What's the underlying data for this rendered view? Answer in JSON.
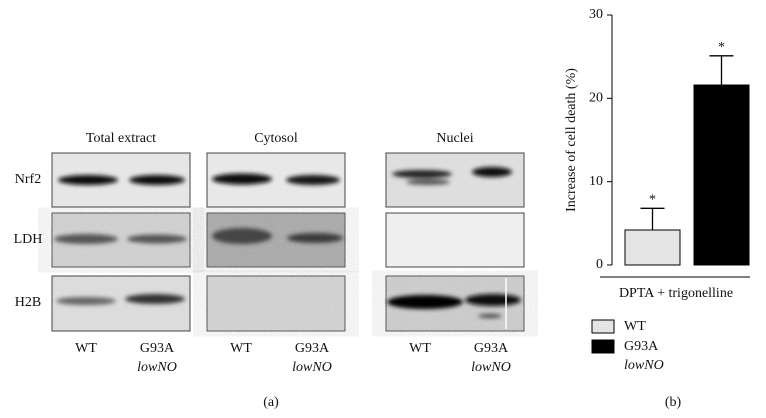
{
  "blots": {
    "rows": [
      "Nrf2",
      "LDH",
      "H2B"
    ],
    "panels": [
      {
        "title": "Total extract",
        "lanes": [
          {
            "label": "WT"
          },
          {
            "label": "G93A",
            "sublabel": "lowNO"
          }
        ]
      },
      {
        "title": "Cytosol",
        "lanes": [
          {
            "label": "WT"
          },
          {
            "label": "G93A",
            "sublabel": "lowNO"
          }
        ]
      },
      {
        "title": "Nuclei",
        "lanes": [
          {
            "label": "WT"
          },
          {
            "label": "G93A",
            "sublabel": "lowNO"
          }
        ]
      }
    ],
    "panel_label": "(a)"
  },
  "chart_data": {
    "type": "bar",
    "ylabel": "Increase of cell death (%)",
    "xlabel": "DPTA + trigonelline",
    "ylim": [
      0,
      30
    ],
    "yticks": [
      0,
      10,
      20,
      30
    ],
    "series": [
      {
        "name": "WT",
        "color": "#e4e4e4",
        "values": [
          4.2
        ],
        "errors": [
          2.6
        ],
        "annotation": "*"
      },
      {
        "name": "G93A",
        "name_sub": "lowNO",
        "color": "#000000",
        "values": [
          21.6
        ],
        "errors": [
          3.5
        ],
        "annotation": "*"
      }
    ],
    "panel_label": "(b)"
  }
}
